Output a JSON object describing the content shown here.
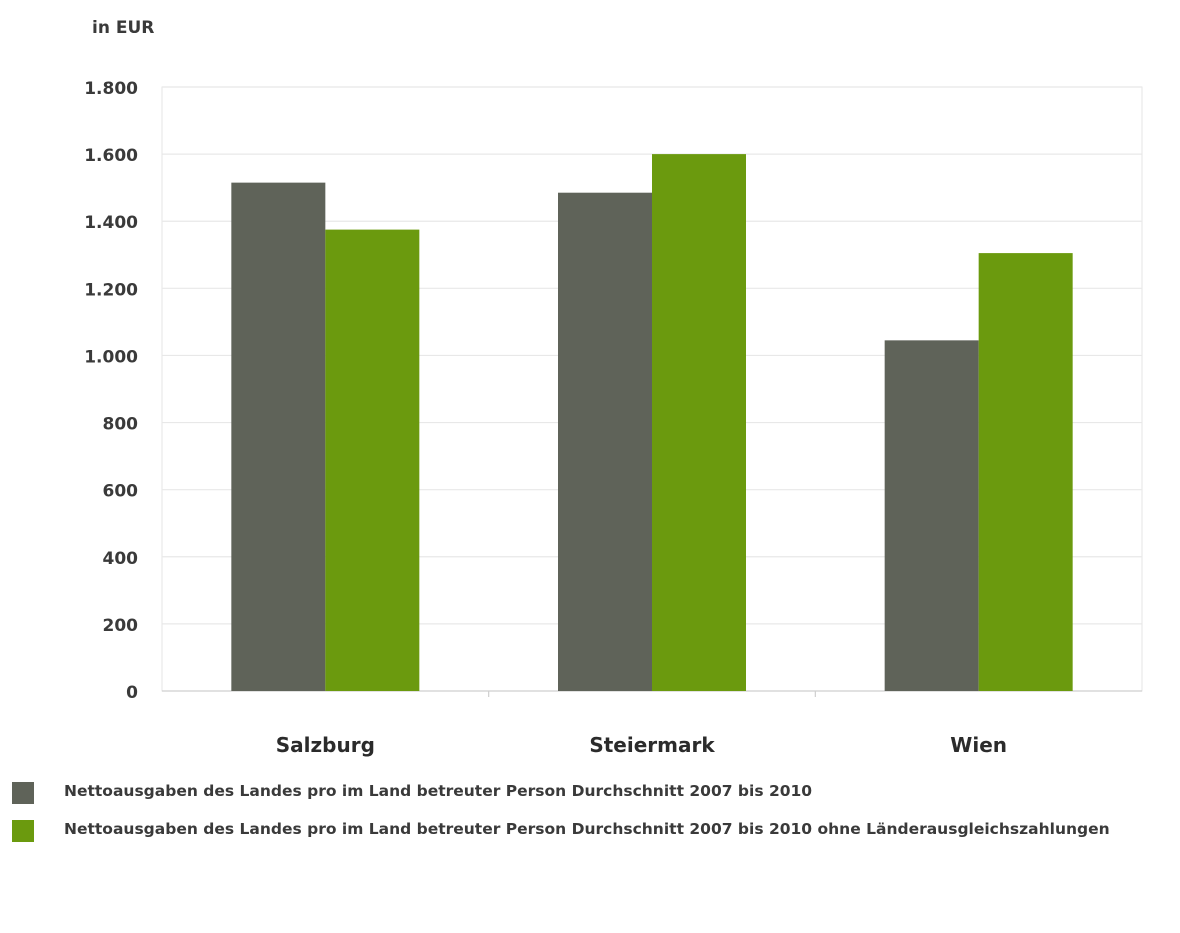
{
  "chart_data": {
    "type": "bar",
    "ylabel": "in EUR",
    "categories": [
      "Salzburg",
      "Steiermark",
      "Wien"
    ],
    "ylim": [
      0,
      1800
    ],
    "yticks": [
      0,
      200,
      400,
      600,
      800,
      1000,
      1200,
      1400,
      1600,
      1800
    ],
    "ytick_labels": [
      "0",
      "200",
      "400",
      "600",
      "800",
      "1.000",
      "1.200",
      "1.400",
      "1.600",
      "1.800"
    ],
    "grid": true,
    "legend_position": "bottom",
    "series": [
      {
        "name": "Nettoausgaben des Landes pro im Land betreuter Person Durchschnitt 2007 bis 2010",
        "color": "#5f6359",
        "values": [
          1515,
          1485,
          1045
        ]
      },
      {
        "name": "Nettoausgaben des Landes pro im Land betreuter Person Durchschnitt 2007 bis 2010 ohne Länderausgleichszahlungen",
        "color": "#6b9a0e",
        "values": [
          1375,
          1600,
          1305
        ]
      }
    ]
  }
}
